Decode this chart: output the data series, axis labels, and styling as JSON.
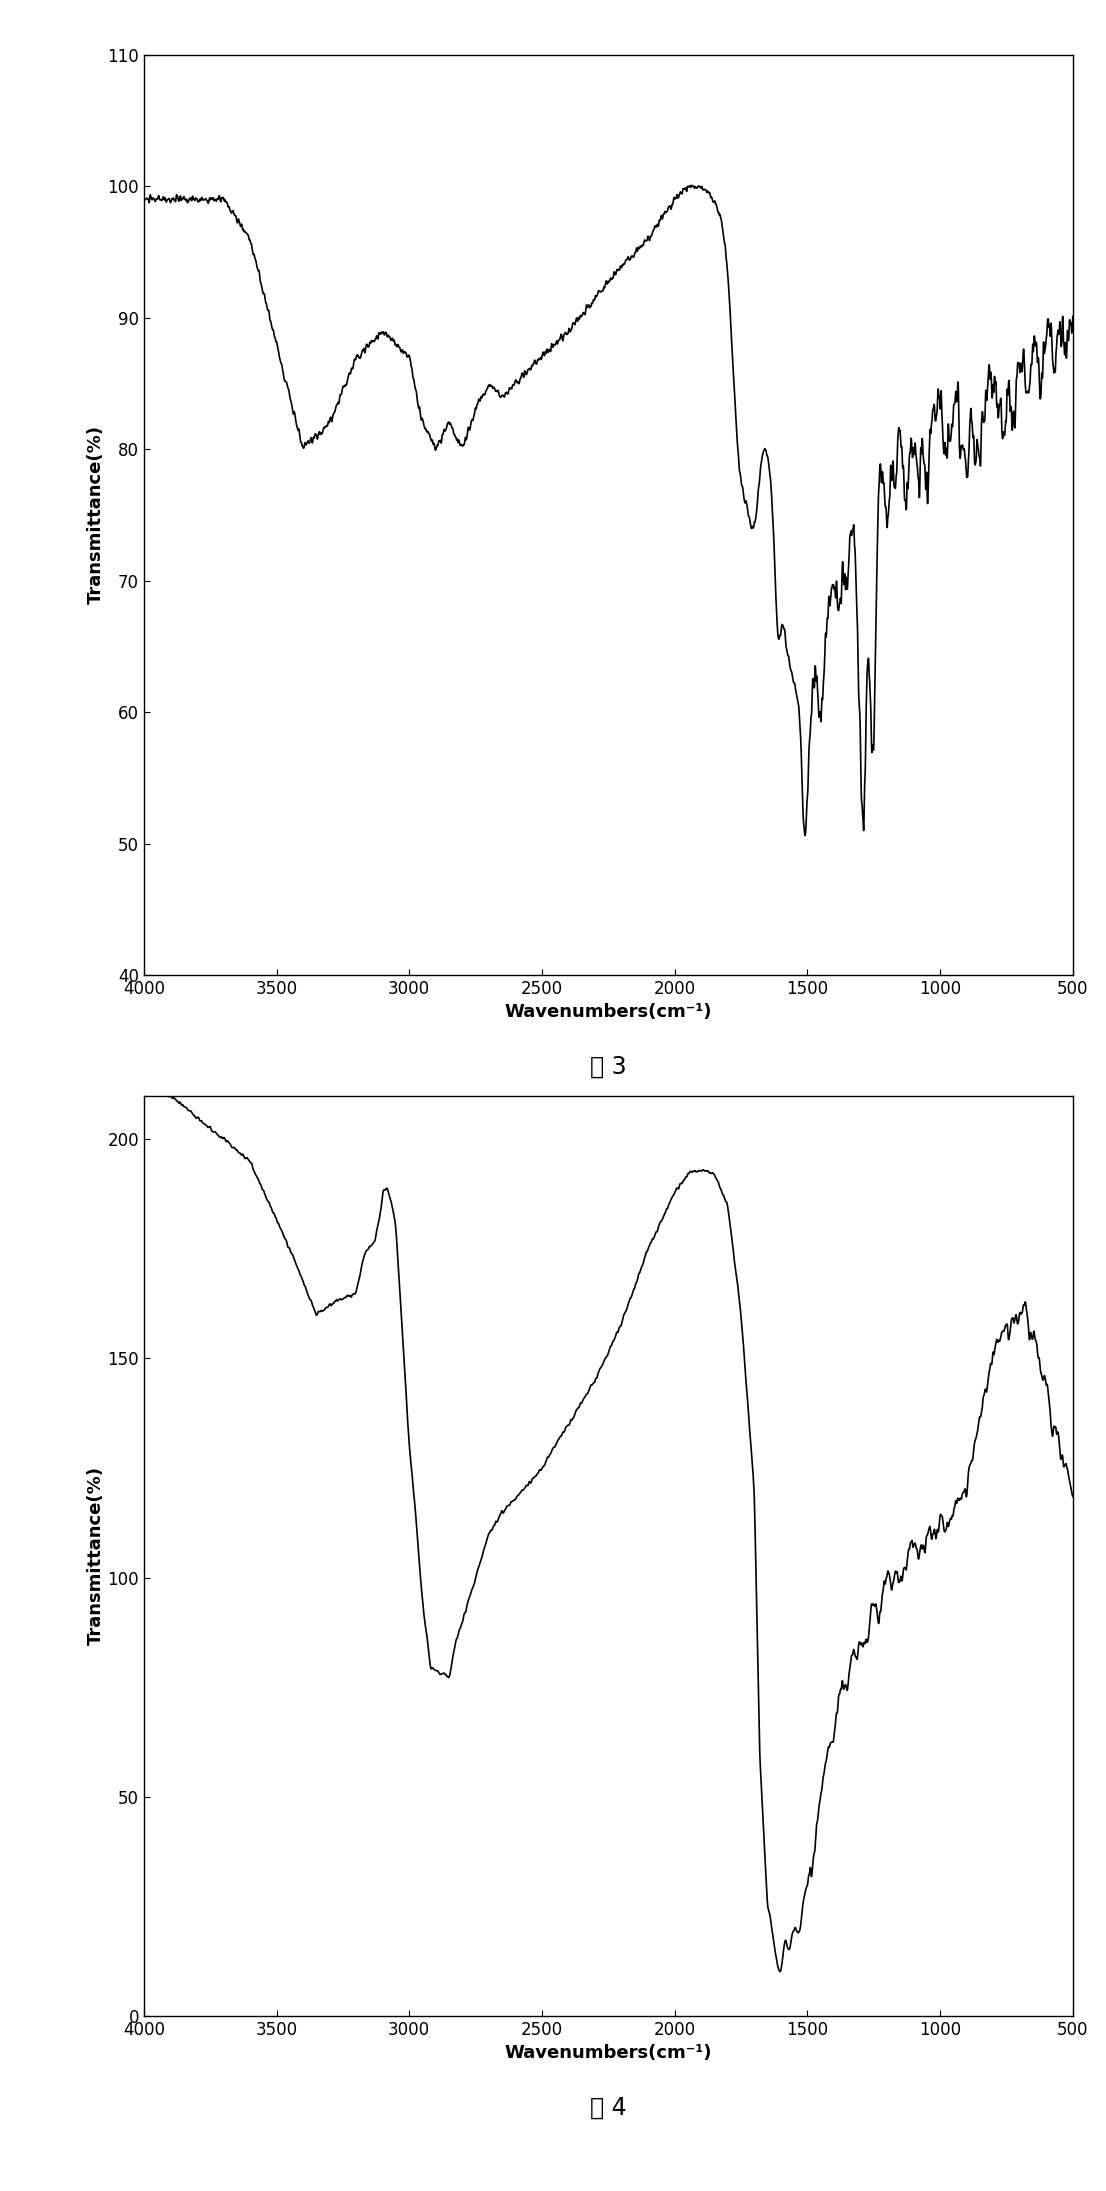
{
  "fig3": {
    "xlabel": "Wavenumbers(cm⁻¹)",
    "ylabel": "Transmittance(%)",
    "xlim": [
      4000,
      500
    ],
    "ylim": [
      40,
      110
    ],
    "yticks": [
      40,
      50,
      60,
      70,
      80,
      90,
      100,
      110
    ],
    "xticks": [
      4000,
      3500,
      3000,
      2500,
      2000,
      1500,
      1000,
      500
    ],
    "caption": "图 3"
  },
  "fig4": {
    "xlabel": "Wavenumbers(cm⁻¹)",
    "ylabel": "Transmittance(%)",
    "xlim": [
      4000,
      500
    ],
    "ylim": [
      0,
      210
    ],
    "yticks": [
      0,
      50,
      100,
      150,
      200
    ],
    "xticks": [
      4000,
      3500,
      3000,
      2500,
      2000,
      1500,
      1000,
      500
    ],
    "caption": "图 4"
  },
  "line_color": "#000000",
  "line_width": 1.2,
  "background_color": "#ffffff",
  "font_size": 13,
  "caption_font_size": 17,
  "fig_width": 11.06,
  "fig_height": 21.91,
  "dpi": 100
}
